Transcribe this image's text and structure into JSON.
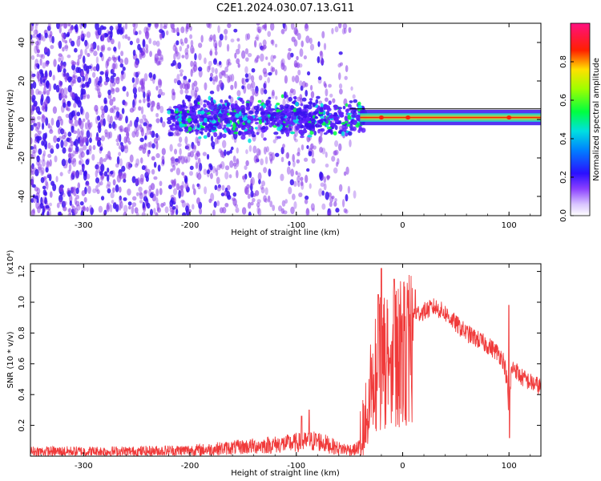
{
  "figure_title": "C2E1.2024.030.07.13.G11",
  "colors": {
    "snr_line": "#f03a3a",
    "spectrogram_base": "#8a40e8",
    "spectrogram_core": "#3a10f0"
  },
  "chart_data": [
    {
      "type": "heatmap",
      "title": "",
      "xlabel": "Height of straight line (km)",
      "ylabel": "Frequency (Hz)",
      "xlim": [
        -350,
        130
      ],
      "ylim": [
        -50,
        50
      ],
      "x_ticks": [
        "-300",
        "-200",
        "-100",
        "0",
        "100"
      ],
      "y_ticks": [
        "-40",
        "-20",
        "0",
        "20",
        "40"
      ],
      "colorbar": {
        "label": "Normalized spectral amplitude",
        "range": [
          0.0,
          1.0
        ],
        "ticks": [
          "0.0",
          "0.2",
          "0.4",
          "0.6",
          "0.8"
        ],
        "colormap": "rainbow (white-violet-blue-cyan-green-yellow-red-magenta)"
      },
      "features": {
        "broadband_noise_x_range": [
          -350,
          -55
        ],
        "signal_center_frequency_hz": 1,
        "signal_band_start_x": -220,
        "strong_narrowband_x_range": [
          -40,
          130
        ],
        "peak_amplitude_near_x": [
          100,
          5,
          -20
        ]
      },
      "grid": false
    },
    {
      "type": "line",
      "title": "",
      "xlabel": "Height of straight line (km)",
      "ylabel": "SNR (10 * v/v)",
      "y_scale_label": "(x10⁴)",
      "xlim": [
        -350,
        130
      ],
      "ylim": [
        0,
        1.25
      ],
      "x_ticks": [
        "-300",
        "-200",
        "-100",
        "0",
        "100"
      ],
      "y_ticks": [
        "0.2",
        "0.4",
        "0.6",
        "0.8",
        "1.0",
        "1.2"
      ],
      "grid": false,
      "series": [
        {
          "envelope_x": [
            -350,
            -250,
            -190,
            -150,
            -110,
            -80,
            -60,
            -45,
            -38,
            -33,
            -28,
            -22,
            -18,
            -10,
            0,
            10,
            20,
            30,
            40,
            50,
            60,
            70,
            80,
            90,
            95,
            98,
            100,
            102,
            105,
            110,
            120,
            130
          ],
          "envelope_y": [
            0.03,
            0.03,
            0.04,
            0.06,
            0.08,
            0.1,
            0.05,
            0.04,
            0.08,
            0.3,
            0.65,
            0.8,
            0.75,
            0.82,
            0.87,
            0.92,
            0.94,
            0.97,
            0.93,
            0.86,
            0.8,
            0.76,
            0.72,
            0.67,
            0.62,
            0.5,
            0.25,
            0.55,
            0.58,
            0.52,
            0.48,
            0.45
          ],
          "spikes": [
            {
              "x": -20,
              "y": 1.22
            },
            {
              "x": -23,
              "y": 1.05
            },
            {
              "x": -8,
              "y": 1.15
            },
            {
              "x": 12,
              "y": 1.08
            },
            {
              "x": 100,
              "y": 0.98
            },
            {
              "x": 100.5,
              "y": 0.12
            },
            {
              "x": -88,
              "y": 0.3
            },
            {
              "x": -95,
              "y": 0.26
            }
          ]
        }
      ]
    }
  ]
}
